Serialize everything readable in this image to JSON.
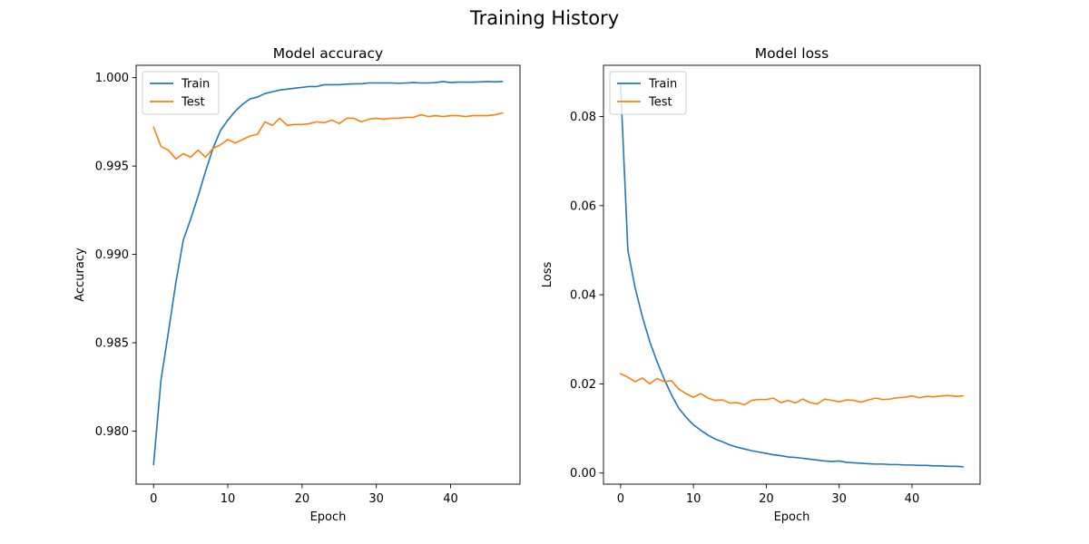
{
  "suptitle": "Training History",
  "colors": {
    "train": "#1f77b4",
    "test": "#ff7f0e"
  },
  "chart_data": [
    {
      "type": "line",
      "title": "Model accuracy",
      "xlabel": "Epoch",
      "ylabel": "Accuracy",
      "xlim": [
        -2.35,
        49.35
      ],
      "ylim": [
        0.977,
        1.0007
      ],
      "xticks": [
        0,
        10,
        20,
        30,
        40
      ],
      "xtick_labels": [
        "0",
        "10",
        "20",
        "30",
        "40"
      ],
      "yticks": [
        0.98,
        0.985,
        0.99,
        0.995,
        1.0
      ],
      "ytick_labels": [
        "0.980",
        "0.985",
        "0.990",
        "0.995",
        "1.000"
      ],
      "legend": {
        "position": "top-left",
        "entries": [
          "Train",
          "Test"
        ]
      },
      "grid": false,
      "series": [
        {
          "name": "Train",
          "color": "#1f77b4",
          "x": [
            0,
            1,
            2,
            3,
            4,
            5,
            6,
            7,
            8,
            9,
            10,
            11,
            12,
            13,
            14,
            15,
            16,
            17,
            18,
            19,
            20,
            21,
            22,
            23,
            24,
            25,
            26,
            27,
            28,
            29,
            30,
            31,
            32,
            33,
            34,
            35,
            36,
            37,
            38,
            39,
            40,
            41,
            42,
            43,
            44,
            45,
            46,
            47
          ],
          "y": [
            0.9781,
            0.9829,
            0.9856,
            0.9884,
            0.9908,
            0.992,
            0.9933,
            0.9947,
            0.996,
            0.997,
            0.9976,
            0.9981,
            0.9985,
            0.9988,
            0.9989,
            0.9991,
            0.9992,
            0.9993,
            0.99935,
            0.9994,
            0.99945,
            0.9995,
            0.9995,
            0.9996,
            0.9996,
            0.9996,
            0.99963,
            0.99965,
            0.99965,
            0.9997,
            0.9997,
            0.9997,
            0.9997,
            0.99968,
            0.9997,
            0.99972,
            0.9997,
            0.9997,
            0.99972,
            0.99978,
            0.99972,
            0.99975,
            0.99975,
            0.99975,
            0.99976,
            0.99978,
            0.99976,
            0.99978
          ]
        },
        {
          "name": "Test",
          "color": "#ff7f0e",
          "x": [
            0,
            1,
            2,
            3,
            4,
            5,
            6,
            7,
            8,
            9,
            10,
            11,
            12,
            13,
            14,
            15,
            16,
            17,
            18,
            19,
            20,
            21,
            22,
            23,
            24,
            25,
            26,
            27,
            28,
            29,
            30,
            31,
            32,
            33,
            34,
            35,
            36,
            37,
            38,
            39,
            40,
            41,
            42,
            43,
            44,
            45,
            46,
            47
          ],
          "y": [
            0.9972,
            0.9961,
            0.9959,
            0.9954,
            0.9957,
            0.9955,
            0.9959,
            0.9955,
            0.996,
            0.9962,
            0.9965,
            0.9963,
            0.9965,
            0.9967,
            0.9968,
            0.9975,
            0.9973,
            0.9977,
            0.9973,
            0.99735,
            0.99735,
            0.9974,
            0.9975,
            0.99745,
            0.9976,
            0.9974,
            0.9977,
            0.9977,
            0.9975,
            0.99765,
            0.9977,
            0.99765,
            0.9977,
            0.9977,
            0.99775,
            0.99775,
            0.9979,
            0.9978,
            0.99785,
            0.9978,
            0.99785,
            0.99785,
            0.9978,
            0.99785,
            0.99785,
            0.99785,
            0.9979,
            0.998
          ]
        }
      ]
    },
    {
      "type": "line",
      "title": "Model loss",
      "xlabel": "Epoch",
      "ylabel": "Loss",
      "xlim": [
        -2.35,
        49.35
      ],
      "ylim": [
        -0.0025,
        0.0915
      ],
      "xticks": [
        0,
        10,
        20,
        30,
        40
      ],
      "xtick_labels": [
        "0",
        "10",
        "20",
        "30",
        "40"
      ],
      "yticks": [
        0.0,
        0.02,
        0.04,
        0.06,
        0.08
      ],
      "ytick_labels": [
        "0.00",
        "0.02",
        "0.04",
        "0.06",
        "0.08"
      ],
      "legend": {
        "position": "top-left",
        "entries": [
          "Train",
          "Test"
        ]
      },
      "grid": false,
      "series": [
        {
          "name": "Train",
          "color": "#1f77b4",
          "x": [
            0,
            1,
            2,
            3,
            4,
            5,
            6,
            7,
            8,
            9,
            10,
            11,
            12,
            13,
            14,
            15,
            16,
            17,
            18,
            19,
            20,
            21,
            22,
            23,
            24,
            25,
            26,
            27,
            28,
            29,
            30,
            31,
            32,
            33,
            34,
            35,
            36,
            37,
            38,
            39,
            40,
            41,
            42,
            43,
            44,
            45,
            46,
            47
          ],
          "y": [
            0.087,
            0.05,
            0.0415,
            0.035,
            0.0295,
            0.025,
            0.021,
            0.0175,
            0.0145,
            0.0125,
            0.0108,
            0.0096,
            0.0085,
            0.0076,
            0.007,
            0.0063,
            0.0058,
            0.0054,
            0.005,
            0.0047,
            0.0044,
            0.0041,
            0.0039,
            0.0036,
            0.0035,
            0.0033,
            0.0031,
            0.0029,
            0.0027,
            0.0026,
            0.0027,
            0.0024,
            0.0023,
            0.0022,
            0.0021,
            0.002,
            0.002,
            0.0019,
            0.0019,
            0.0018,
            0.0018,
            0.0017,
            0.0017,
            0.0016,
            0.0016,
            0.0015,
            0.0015,
            0.0014
          ]
        },
        {
          "name": "Test",
          "color": "#ff7f0e",
          "x": [
            0,
            1,
            2,
            3,
            4,
            5,
            6,
            7,
            8,
            9,
            10,
            11,
            12,
            13,
            14,
            15,
            16,
            17,
            18,
            19,
            20,
            21,
            22,
            23,
            24,
            25,
            26,
            27,
            28,
            29,
            30,
            31,
            32,
            33,
            34,
            35,
            36,
            37,
            38,
            39,
            40,
            41,
            42,
            43,
            44,
            45,
            46,
            47
          ],
          "y": [
            0.0223,
            0.0215,
            0.0205,
            0.0213,
            0.02,
            0.0212,
            0.0205,
            0.0207,
            0.0188,
            0.0178,
            0.017,
            0.0178,
            0.0168,
            0.0163,
            0.0164,
            0.0157,
            0.0158,
            0.0153,
            0.0163,
            0.0165,
            0.0165,
            0.0168,
            0.0158,
            0.0163,
            0.0157,
            0.0166,
            0.0158,
            0.0155,
            0.0166,
            0.0163,
            0.016,
            0.0164,
            0.0163,
            0.0159,
            0.0164,
            0.0168,
            0.0165,
            0.0166,
            0.0169,
            0.017,
            0.0173,
            0.0169,
            0.0172,
            0.0171,
            0.0173,
            0.0174,
            0.0172,
            0.0173
          ]
        }
      ]
    }
  ]
}
